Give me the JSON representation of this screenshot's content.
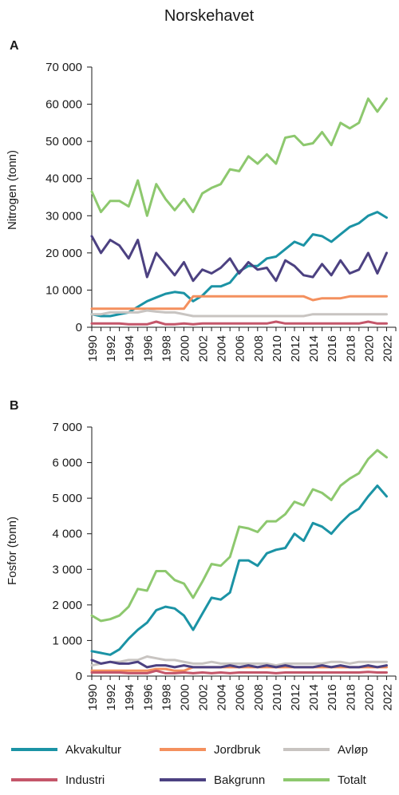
{
  "figure_title": "Norskehavet",
  "colors": {
    "Akvakultur": "#1b93a5",
    "Jordbruk": "#f4905e",
    "Avløp": "#c8c4c1",
    "Industri": "#c4566a",
    "Bakgrunn": "#4c4181",
    "Totalt": "#8dc86e"
  },
  "legend": [
    "Akvakultur",
    "Jordbruk",
    "Avløp",
    "Industri",
    "Bakgrunn",
    "Totalt"
  ],
  "chart_data": [
    {
      "type": "line",
      "panel_label": "A",
      "ylabel": "Nitrogen (tonn)",
      "ylim": [
        0,
        70000
      ],
      "yticks": [
        "0",
        "10 000",
        "20 000",
        "30 000",
        "40 000",
        "50 000",
        "60 000",
        "70 000"
      ],
      "xlim": [
        1990,
        2023
      ],
      "xticks": [
        "1990",
        "1992",
        "1994",
        "1996",
        "1998",
        "2000",
        "2002",
        "2004",
        "2006",
        "2008",
        "2010",
        "2012",
        "2014",
        "2016",
        "2018",
        "2020",
        "2022"
      ],
      "x": [
        1990,
        1991,
        1992,
        1993,
        1994,
        1995,
        1996,
        1997,
        1998,
        1999,
        2000,
        2001,
        2002,
        2003,
        2004,
        2005,
        2006,
        2007,
        2008,
        2009,
        2010,
        2011,
        2012,
        2013,
        2014,
        2015,
        2016,
        2017,
        2018,
        2019,
        2020,
        2021,
        2022
      ],
      "series": [
        {
          "name": "Akvakultur",
          "values": [
            3500,
            3000,
            3000,
            3500,
            4000,
            5500,
            7000,
            8000,
            9000,
            9500,
            9200,
            7000,
            8500,
            11000,
            11000,
            12000,
            15000,
            16500,
            16500,
            18500,
            19000,
            21000,
            23000,
            22000,
            25000,
            24500,
            23000,
            25000,
            27000,
            28000,
            30000,
            31000,
            29500
          ]
        },
        {
          "name": "Jordbruk",
          "values": [
            5000,
            5000,
            5000,
            5000,
            5000,
            5000,
            5000,
            5000,
            5000,
            5000,
            5000,
            8300,
            8300,
            8300,
            8300,
            8300,
            8300,
            8300,
            8300,
            8300,
            8300,
            8300,
            8300,
            8300,
            7300,
            7800,
            7800,
            7800,
            8300,
            8300,
            8300,
            8300,
            8300
          ]
        },
        {
          "name": "Avløp",
          "values": [
            3500,
            3500,
            4000,
            4000,
            4000,
            4000,
            4500,
            4200,
            4000,
            4000,
            3500,
            3000,
            3000,
            3000,
            3000,
            3000,
            3000,
            3000,
            3000,
            3000,
            3000,
            3000,
            3000,
            3000,
            3500,
            3500,
            3500,
            3500,
            3500,
            3500,
            3500,
            3500,
            3500
          ]
        },
        {
          "name": "Industri",
          "values": [
            1000,
            1000,
            1000,
            1000,
            800,
            800,
            800,
            1500,
            800,
            800,
            1000,
            800,
            1000,
            1000,
            1000,
            1000,
            1000,
            1000,
            1000,
            1000,
            1500,
            1000,
            1000,
            1000,
            1000,
            1000,
            1000,
            1000,
            1000,
            1000,
            1500,
            1000,
            1000
          ]
        },
        {
          "name": "Bakgrunn",
          "values": [
            24500,
            20000,
            23500,
            22000,
            18500,
            23500,
            13500,
            20000,
            17000,
            14000,
            17500,
            12500,
            15500,
            14500,
            16000,
            18500,
            14500,
            17500,
            15500,
            16000,
            12500,
            18000,
            16500,
            14000,
            13500,
            17000,
            14000,
            18000,
            14500,
            15500,
            20000,
            14500,
            20000
          ]
        },
        {
          "name": "Totalt",
          "values": [
            36500,
            31000,
            34000,
            34000,
            32500,
            39500,
            30000,
            38500,
            34500,
            31500,
            34500,
            31000,
            36000,
            37500,
            38500,
            42500,
            42000,
            46000,
            44000,
            46500,
            44000,
            51000,
            51500,
            49000,
            49500,
            52500,
            49000,
            55000,
            53500,
            55000,
            61500,
            58000,
            61500
          ]
        }
      ]
    },
    {
      "type": "line",
      "panel_label": "B",
      "ylabel": "Fosfor (tonn)",
      "ylim": [
        0,
        7000
      ],
      "yticks": [
        "0",
        "1 000",
        "2 000",
        "3 000",
        "4 000",
        "5 000",
        "6 000",
        "7 000"
      ],
      "xlim": [
        1990,
        2023
      ],
      "xticks": [
        "1990",
        "1992",
        "1994",
        "1996",
        "1998",
        "2000",
        "2002",
        "2004",
        "2006",
        "2008",
        "2010",
        "2012",
        "2014",
        "2016",
        "2018",
        "2020",
        "2022"
      ],
      "x": [
        1990,
        1991,
        1992,
        1993,
        1994,
        1995,
        1996,
        1997,
        1998,
        1999,
        2000,
        2001,
        2002,
        2003,
        2004,
        2005,
        2006,
        2007,
        2008,
        2009,
        2010,
        2011,
        2012,
        2013,
        2014,
        2015,
        2016,
        2017,
        2018,
        2019,
        2020,
        2021,
        2022
      ],
      "series": [
        {
          "name": "Akvakultur",
          "values": [
            700,
            650,
            600,
            750,
            1050,
            1300,
            1500,
            1850,
            1950,
            1900,
            1700,
            1300,
            1750,
            2200,
            2150,
            2350,
            3250,
            3250,
            3100,
            3450,
            3550,
            3600,
            4000,
            3800,
            4300,
            4200,
            4000,
            4300,
            4550,
            4700,
            5050,
            5350,
            5050
          ]
        },
        {
          "name": "Jordbruk",
          "values": [
            150,
            150,
            150,
            150,
            150,
            150,
            150,
            200,
            200,
            150,
            150,
            250,
            250,
            250,
            250,
            250,
            250,
            250,
            250,
            250,
            250,
            250,
            250,
            250,
            250,
            250,
            250,
            250,
            250,
            250,
            250,
            250,
            250
          ]
        },
        {
          "name": "Avløp",
          "values": [
            300,
            350,
            400,
            400,
            450,
            450,
            550,
            500,
            450,
            450,
            400,
            350,
            350,
            400,
            350,
            350,
            350,
            350,
            350,
            350,
            300,
            350,
            350,
            350,
            350,
            350,
            400,
            400,
            350,
            400,
            400,
            400,
            400
          ]
        },
        {
          "name": "Industri",
          "values": [
            100,
            100,
            100,
            100,
            80,
            80,
            80,
            150,
            80,
            80,
            100,
            80,
            100,
            80,
            100,
            80,
            100,
            100,
            100,
            100,
            80,
            100,
            100,
            100,
            100,
            100,
            100,
            100,
            100,
            100,
            120,
            100,
            100
          ]
        },
        {
          "name": "Bakgrunn",
          "values": [
            450,
            350,
            400,
            350,
            350,
            400,
            250,
            300,
            300,
            250,
            300,
            250,
            250,
            250,
            250,
            300,
            250,
            300,
            250,
            300,
            250,
            300,
            250,
            250,
            250,
            300,
            250,
            300,
            250,
            250,
            300,
            250,
            300
          ]
        },
        {
          "name": "Totalt",
          "values": [
            1700,
            1550,
            1600,
            1700,
            1950,
            2450,
            2400,
            2950,
            2950,
            2700,
            2600,
            2200,
            2650,
            3150,
            3100,
            3350,
            4200,
            4150,
            4050,
            4350,
            4350,
            4550,
            4900,
            4800,
            5250,
            5150,
            4950,
            5350,
            5550,
            5700,
            6100,
            6350,
            6150
          ]
        }
      ]
    }
  ]
}
